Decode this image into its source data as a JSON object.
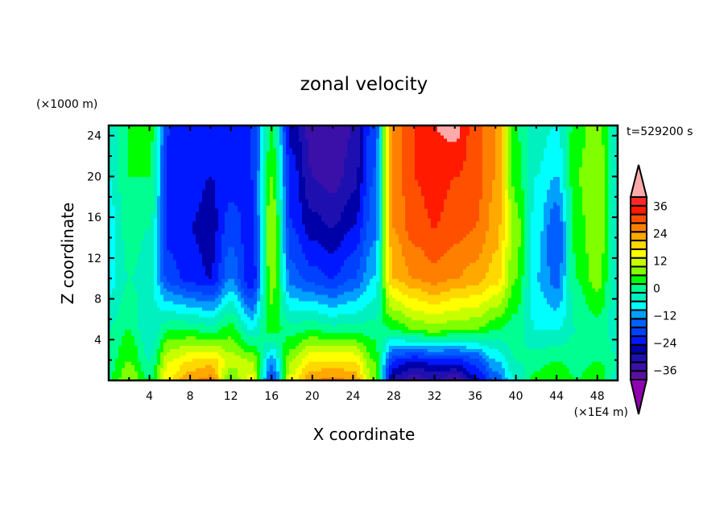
{
  "chart_data": {
    "type": "heatmap",
    "title": "zonal velocity",
    "xlabel": "X coordinate",
    "ylabel": "Z coordinate",
    "x_unit_label": "(×1E4 m)",
    "y_unit_label": "(×1000 m)",
    "time_label": "t=529200 s",
    "xlim": [
      0,
      50
    ],
    "ylim": [
      0,
      25
    ],
    "x_ticks": [
      4,
      8,
      12,
      16,
      20,
      24,
      28,
      32,
      36,
      40,
      44,
      48
    ],
    "x_tick_labels": [
      "4",
      "8",
      "12",
      "16",
      "20",
      "24",
      "28",
      "32",
      "36",
      "40",
      "44",
      "48"
    ],
    "y_ticks": [
      4,
      8,
      12,
      16,
      20,
      24
    ],
    "y_tick_labels": [
      "4",
      "8",
      "12",
      "16",
      "20",
      "24"
    ],
    "colorbar": {
      "levels": [
        -40,
        -36,
        -32,
        -28,
        -24,
        -20,
        -16,
        -12,
        -8,
        -4,
        0,
        4,
        8,
        12,
        16,
        20,
        24,
        28,
        32,
        36,
        40
      ],
      "tick_values": [
        36,
        24,
        12,
        0,
        -12,
        -24,
        -36
      ],
      "tick_labels": [
        "36",
        "24",
        "12",
        "0",
        "−12",
        "−24",
        "−36"
      ],
      "colors": [
        "#5a0fa0",
        "#3a10a8",
        "#1e10b0",
        "#0000a8",
        "#0018ff",
        "#0040ff",
        "#0060ff",
        "#00a0ff",
        "#00ffff",
        "#00f0c0",
        "#00ff90",
        "#00ff00",
        "#80ff00",
        "#c8ff00",
        "#ffff00",
        "#ffd800",
        "#ffa800",
        "#ff8000",
        "#ff5000",
        "#ff1a00",
        "#ff2828"
      ],
      "over_color": "#ffaaaa",
      "under_color": "#9000b0",
      "extend": "both"
    },
    "field_description_cols": [
      {
        "x": 0,
        "profile": [
          4,
          2,
          0,
          -6,
          -6,
          -4,
          -2
        ]
      },
      {
        "x": 2,
        "profile": [
          12,
          8,
          4,
          0,
          2,
          4,
          4
        ]
      },
      {
        "x": 4,
        "profile": [
          4,
          0,
          -4,
          -2,
          0,
          4,
          6
        ]
      },
      {
        "x": 6,
        "profile": [
          20,
          16,
          4,
          -18,
          -22,
          -22,
          -20
        ]
      },
      {
        "x": 8,
        "profile": [
          28,
          20,
          4,
          -22,
          -24,
          -22,
          -24
        ]
      },
      {
        "x": 10,
        "profile": [
          30,
          22,
          2,
          -24,
          -26,
          -24,
          -24
        ]
      },
      {
        "x": 12,
        "profile": [
          8,
          14,
          6,
          -12,
          -18,
          -22,
          -22
        ]
      },
      {
        "x": 14,
        "profile": [
          18,
          12,
          -4,
          -24,
          -22,
          -20,
          -20
        ]
      },
      {
        "x": 16,
        "profile": [
          -18,
          -10,
          6,
          10,
          12,
          8,
          4
        ]
      },
      {
        "x": 18,
        "profile": [
          18,
          12,
          2,
          -14,
          -20,
          -22,
          -26
        ]
      },
      {
        "x": 20,
        "profile": [
          28,
          20,
          4,
          -18,
          -26,
          -32,
          -34
        ]
      },
      {
        "x": 22,
        "profile": [
          30,
          20,
          2,
          -20,
          -28,
          -34,
          -36
        ]
      },
      {
        "x": 24,
        "profile": [
          28,
          20,
          2,
          -16,
          -24,
          -30,
          -32
        ]
      },
      {
        "x": 26,
        "profile": [
          12,
          8,
          2,
          -8,
          -14,
          -16,
          -18
        ]
      },
      {
        "x": 28,
        "profile": [
          -30,
          -20,
          4,
          24,
          28,
          30,
          30
        ]
      },
      {
        "x": 30,
        "profile": [
          -36,
          -24,
          8,
          28,
          34,
          36,
          36
        ]
      },
      {
        "x": 32,
        "profile": [
          -32,
          -22,
          10,
          30,
          36,
          38,
          40
        ]
      },
      {
        "x": 34,
        "profile": [
          -36,
          -22,
          8,
          28,
          34,
          36,
          42
        ]
      },
      {
        "x": 36,
        "profile": [
          -26,
          -18,
          8,
          26,
          32,
          34,
          34
        ]
      },
      {
        "x": 38,
        "profile": [
          -16,
          -8,
          4,
          22,
          26,
          28,
          28
        ]
      },
      {
        "x": 40,
        "profile": [
          -4,
          0,
          2,
          8,
          10,
          6,
          4
        ]
      },
      {
        "x": 42,
        "profile": [
          6,
          2,
          -4,
          -8,
          -6,
          -4,
          -2
        ]
      },
      {
        "x": 44,
        "profile": [
          8,
          4,
          -4,
          -14,
          -16,
          -8,
          -4
        ]
      },
      {
        "x": 46,
        "profile": [
          4,
          2,
          0,
          4,
          6,
          8,
          6
        ]
      },
      {
        "x": 48,
        "profile": [
          8,
          4,
          2,
          10,
          12,
          12,
          10
        ]
      },
      {
        "x": 50,
        "profile": [
          -2,
          0,
          -2,
          -4,
          -4,
          -4,
          -2
        ]
      }
    ],
    "profile_z": [
      0,
      2,
      5,
      10,
      15,
      20,
      25
    ],
    "grid": false
  }
}
